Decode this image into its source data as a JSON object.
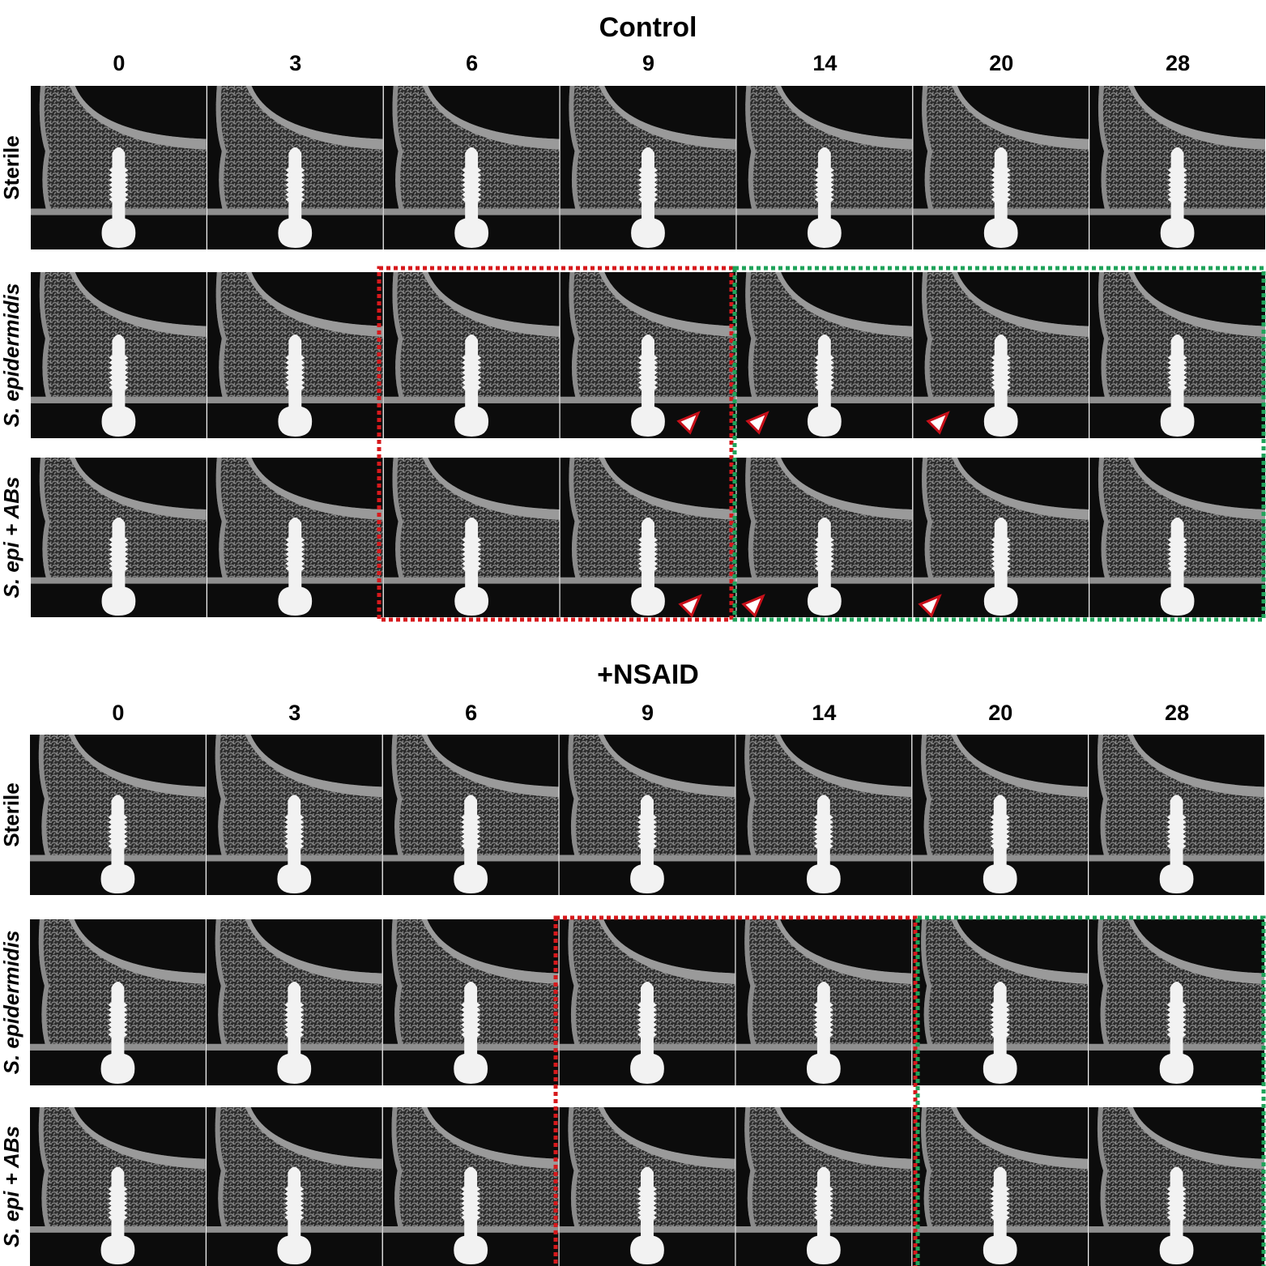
{
  "panels": [
    {
      "title": "Control",
      "columns": [
        "0",
        "3",
        "6",
        "9",
        "14",
        "20",
        "28"
      ],
      "rows": [
        "Sterile",
        "S. epidermidis",
        "S. epi + ABs"
      ]
    },
    {
      "title": "+NSAID",
      "columns": [
        "0",
        "3",
        "6",
        "9",
        "14",
        "20",
        "28"
      ],
      "rows": [
        "Sterile",
        "S. epidermidis",
        "S. epi + ABs"
      ]
    }
  ]
}
